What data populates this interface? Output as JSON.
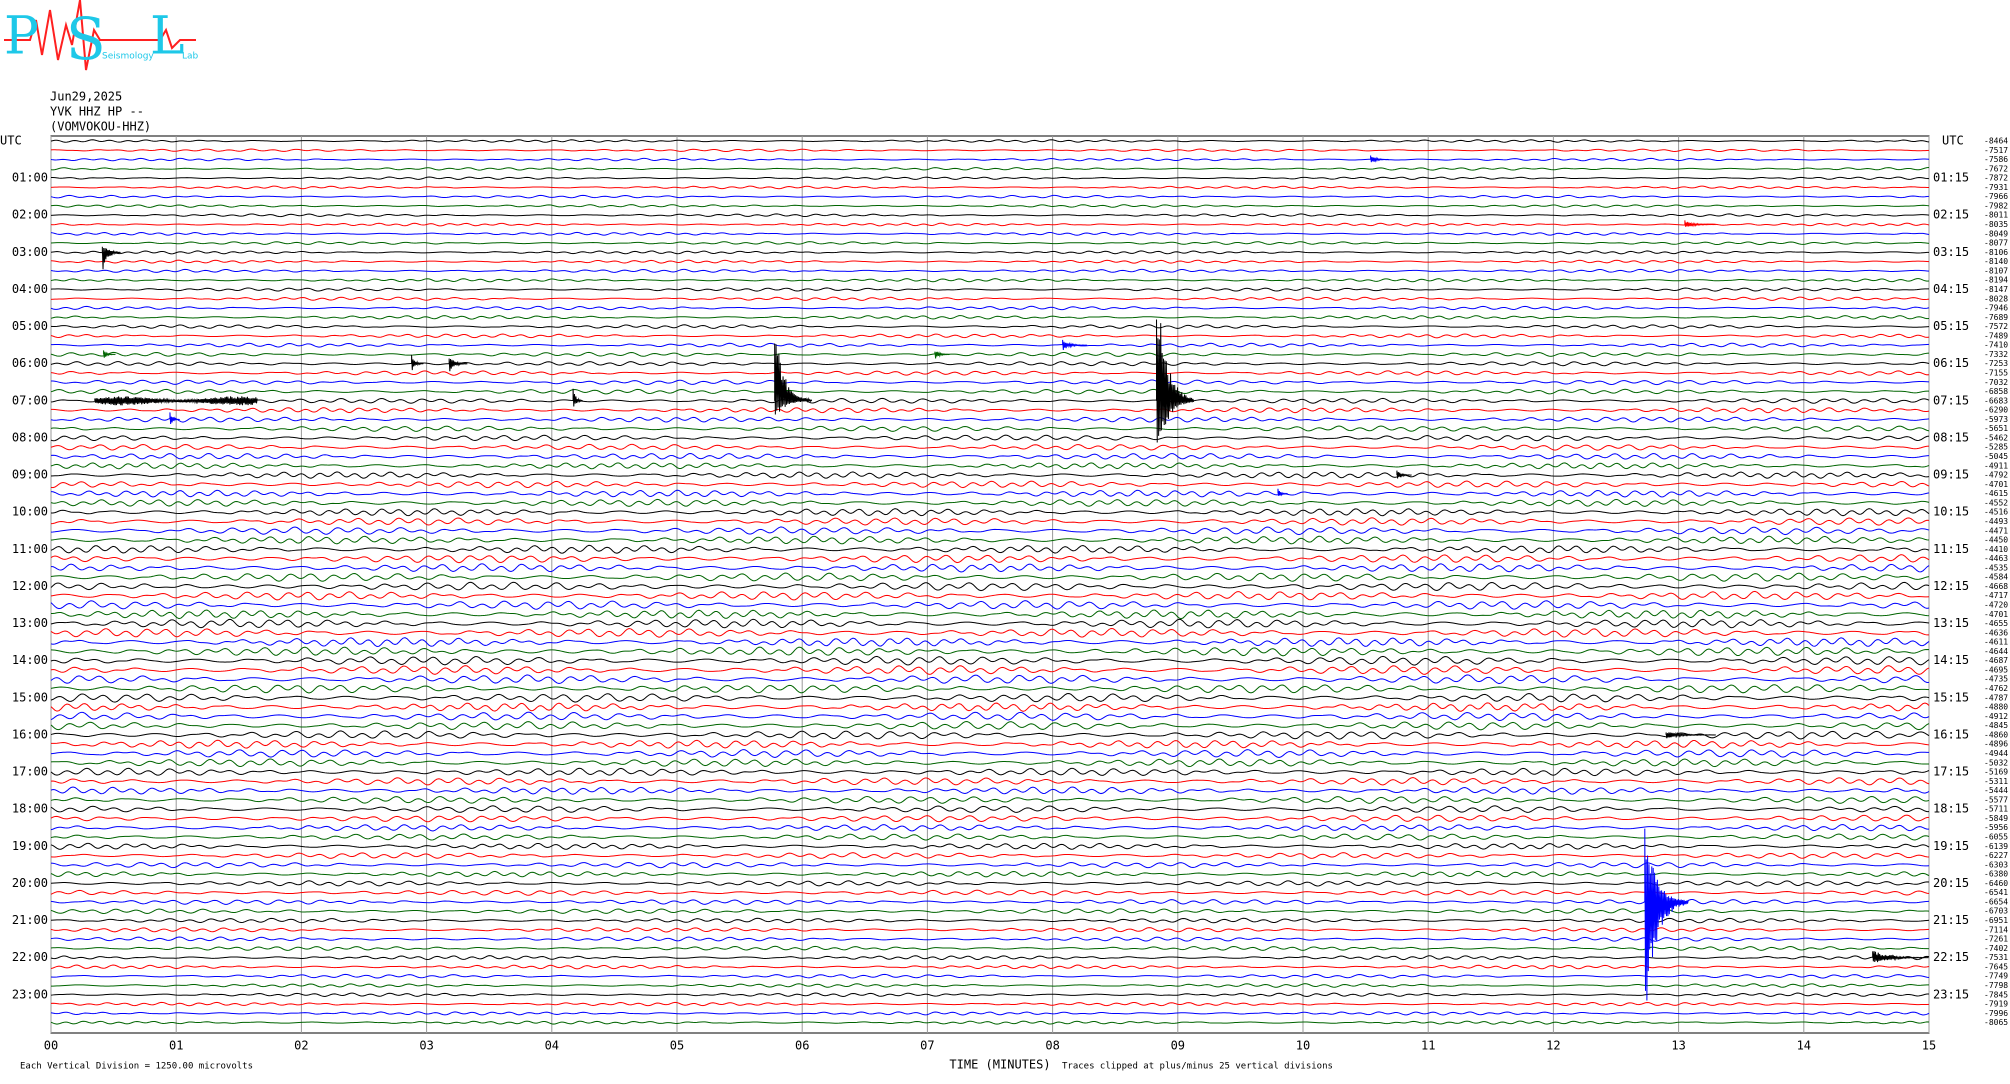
{
  "chart_data": {
    "type": "helicorder",
    "logo": {
      "letters": [
        "P",
        "S",
        "L"
      ],
      "words": [
        "Seismology",
        "Lab"
      ]
    },
    "date": "Jun29,2025",
    "station": "YVK HHZ HP --",
    "location": "(VOMVOKOU-HHZ)",
    "utc_label": "UTC",
    "left_labels": [
      "01:00",
      "02:00",
      "03:00",
      "04:00",
      "05:00",
      "06:00",
      "07:00",
      "08:00",
      "09:00",
      "10:00",
      "11:00",
      "12:00",
      "13:00",
      "14:00",
      "15:00",
      "16:00",
      "17:00",
      "18:00",
      "19:00",
      "20:00",
      "21:00",
      "22:00",
      "23:00"
    ],
    "right_labels": [
      "01:15",
      "02:15",
      "03:15",
      "04:15",
      "05:15",
      "06:15",
      "07:15",
      "08:15",
      "09:15",
      "10:15",
      "11:15",
      "12:15",
      "13:15",
      "14:15",
      "15:15",
      "16:15",
      "17:15",
      "18:15",
      "19:15",
      "20:15",
      "21:15",
      "22:15",
      "23:15"
    ],
    "trace_colors": [
      "#000000",
      "#ff0000",
      "#0000ff",
      "#006400"
    ],
    "trace_values": [
      -8464,
      -7517,
      -7586,
      -7672,
      -7872,
      -7931,
      -7966,
      -7982,
      -8011,
      -8035,
      -8049,
      -8077,
      -8106,
      -8140,
      -8107,
      -8194,
      -8147,
      -8028,
      -7946,
      -7689,
      -7572,
      -7489,
      -7410,
      -7332,
      -7253,
      -7155,
      -7032,
      -6858,
      -6683,
      -6290,
      -5973,
      -5651,
      -5462,
      -5285,
      -5045,
      -4911,
      -4792,
      -4701,
      -4615,
      -4552,
      -4516,
      -4493,
      -4471,
      -4450,
      -4410,
      -4463,
      -4535,
      -4584,
      -4668,
      -4717,
      -4720,
      -4701,
      -4655,
      -4636,
      -4611,
      -4644,
      -4687,
      -4695,
      -4735,
      -4762,
      -4787,
      -4880,
      -4912,
      -4845,
      -4860,
      -4896,
      -4944,
      -5032,
      -5169,
      -5311,
      -5444,
      -5577,
      -5711,
      -5849,
      -5956,
      -6055,
      -6139,
      -6227,
      -6303,
      -6380,
      -6460,
      -6541,
      -6654,
      -6703,
      -6951,
      -7114,
      -7261,
      -7402,
      -7531,
      -7645,
      -7749,
      -7798,
      -7845,
      -7919,
      -7996,
      -8065
    ],
    "xlim": [
      0,
      15
    ],
    "xticks": [
      {
        "value": 0,
        "label": "00"
      },
      {
        "value": 1,
        "label": "01"
      },
      {
        "value": 2,
        "label": "02"
      },
      {
        "value": 3,
        "label": "03"
      },
      {
        "value": 4,
        "label": "04"
      },
      {
        "value": 5,
        "label": "05"
      },
      {
        "value": 6,
        "label": "06"
      },
      {
        "value": 7,
        "label": "07"
      },
      {
        "value": 8,
        "label": "08"
      },
      {
        "value": 9,
        "label": "09"
      },
      {
        "value": 10,
        "label": "10"
      },
      {
        "value": 11,
        "label": "11"
      },
      {
        "value": 12,
        "label": "12"
      },
      {
        "value": 13,
        "label": "13"
      },
      {
        "value": 14,
        "label": "14"
      },
      {
        "value": 15,
        "label": "15"
      }
    ],
    "xlabel": "TIME (MINUTES)",
    "scale_note": "Each Vertical Division = 1250.00 microvolts",
    "clip_note": "Traces clipped at plus/minus 25 vertical divisions",
    "events": [
      {
        "trace": 12,
        "minute": 0.41,
        "up": 1.2,
        "down": 2.2,
        "duration": 0.15
      },
      {
        "trace": 2,
        "minute": 10.54,
        "up": 0.5,
        "down": 0.5,
        "duration": 0.15
      },
      {
        "trace": 9,
        "minute": 13.05,
        "up": 0.5,
        "down": 0.5,
        "duration": 0.25
      },
      {
        "trace": 23,
        "minute": 0.42,
        "up": 0.5,
        "down": 0.5,
        "duration": 0.1
      },
      {
        "trace": 23,
        "minute": 7.06,
        "up": 0.6,
        "down": 0.6,
        "duration": 0.12
      },
      {
        "trace": 22,
        "minute": 8.08,
        "up": 0.6,
        "down": 0.6,
        "duration": 0.2
      },
      {
        "trace": 24,
        "minute": 2.88,
        "up": 1.0,
        "down": 1.0,
        "duration": 0.1
      },
      {
        "trace": 24,
        "minute": 3.18,
        "up": 1.0,
        "down": 1.0,
        "duration": 0.15
      },
      {
        "trace": 28,
        "minute": 5.78,
        "up": 8.0,
        "down": 2.0,
        "duration": 0.3
      },
      {
        "trace": 28,
        "minute": 8.83,
        "up": 14.0,
        "down": 7.0,
        "duration": 0.3
      },
      {
        "trace": 28,
        "minute": 4.17,
        "up": 1.8,
        "down": 1.0,
        "duration": 0.08
      },
      {
        "trace": 28,
        "minute": 0.35,
        "up": 0.5,
        "down": 0.5,
        "duration": 1.3
      },
      {
        "trace": 30,
        "minute": 0.95,
        "up": 0.8,
        "down": 0.8,
        "duration": 0.08
      },
      {
        "trace": 36,
        "minute": 10.75,
        "up": 0.6,
        "down": 0.6,
        "duration": 0.12
      },
      {
        "trace": 38,
        "minute": 9.8,
        "up": 0.6,
        "down": 0.6,
        "duration": 0.08
      },
      {
        "trace": 64,
        "minute": 12.9,
        "up": 0.4,
        "down": 0.4,
        "duration": 0.4
      },
      {
        "trace": 82,
        "minute": 12.73,
        "up": 8.0,
        "down": 13.0,
        "duration": 0.35
      },
      {
        "trace": 88,
        "minute": 14.55,
        "up": 0.8,
        "down": 0.8,
        "duration": 0.45
      }
    ]
  }
}
